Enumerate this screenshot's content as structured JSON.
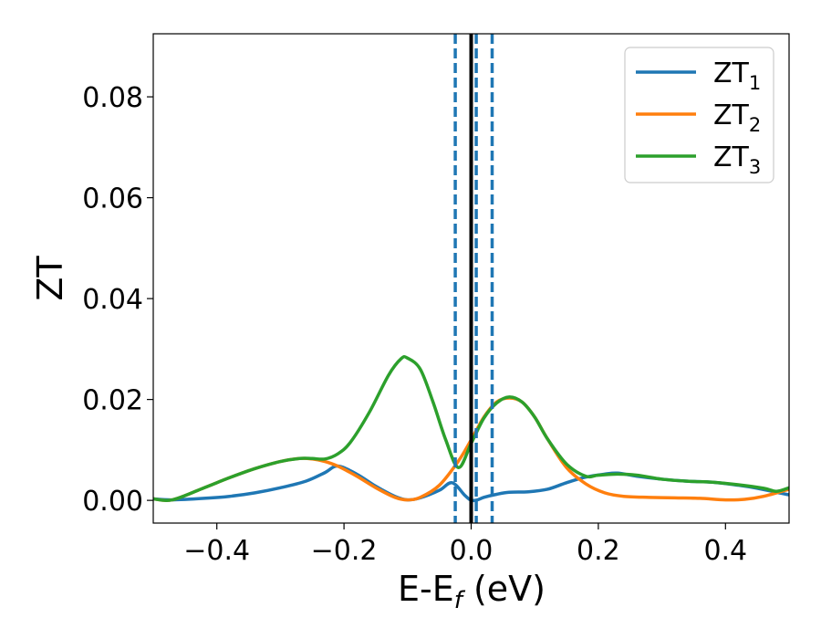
{
  "chart_data": {
    "type": "line",
    "title": "",
    "xlabel": "E-E",
    "xlabel_sub": "f",
    "xlabel_unit": " (eV)",
    "ylabel": "ZT",
    "xlim": [
      -0.5,
      0.5
    ],
    "ylim": [
      -0.0045,
      0.0925
    ],
    "xticks": [
      -0.4,
      -0.2,
      0.0,
      0.2,
      0.4
    ],
    "xtick_labels": [
      "−0.4",
      "−0.2",
      "0.0",
      "0.2",
      "0.4"
    ],
    "yticks": [
      0.0,
      0.02,
      0.04,
      0.06,
      0.08
    ],
    "ytick_labels": [
      "0.00",
      "0.02",
      "0.04",
      "0.06",
      "0.08"
    ],
    "legend_position": "top-right",
    "grid": false,
    "series": [
      {
        "name": "ZT",
        "name_sub": "1",
        "color": "#1f77b4",
        "x": [
          -0.5,
          -0.47,
          -0.42,
          -0.38,
          -0.34,
          -0.3,
          -0.26,
          -0.23,
          -0.21,
          -0.18,
          -0.15,
          -0.12,
          -0.1,
          -0.08,
          -0.05,
          -0.03,
          -0.01,
          0.0,
          0.01,
          0.02,
          0.04,
          0.06,
          0.09,
          0.12,
          0.15,
          0.18,
          0.21,
          0.23,
          0.26,
          0.3,
          0.34,
          0.38,
          0.42,
          0.45,
          0.48,
          0.5
        ],
        "y": [
          0.0003,
          0.0001,
          0.0004,
          0.0008,
          0.0015,
          0.0025,
          0.0038,
          0.0055,
          0.0068,
          0.0052,
          0.0028,
          0.0008,
          0.0001,
          0.0005,
          0.002,
          0.0035,
          0.001,
          0.0,
          0.0001,
          0.0006,
          0.0012,
          0.0016,
          0.0017,
          0.0022,
          0.0035,
          0.0046,
          0.0052,
          0.0054,
          0.0048,
          0.0042,
          0.0038,
          0.0036,
          0.003,
          0.0024,
          0.0016,
          0.0011
        ]
      },
      {
        "name": "ZT",
        "name_sub": "2",
        "color": "#ff7f0e",
        "x": [
          -0.5,
          -0.47,
          -0.42,
          -0.38,
          -0.34,
          -0.3,
          -0.27,
          -0.25,
          -0.23,
          -0.21,
          -0.18,
          -0.15,
          -0.12,
          -0.1,
          -0.08,
          -0.05,
          -0.02,
          0.0,
          0.02,
          0.04,
          0.06,
          0.08,
          0.1,
          0.12,
          0.15,
          0.18,
          0.21,
          0.24,
          0.28,
          0.32,
          0.36,
          0.4,
          0.43,
          0.46,
          0.5
        ],
        "y": [
          0.0003,
          0.0001,
          0.0025,
          0.0045,
          0.0063,
          0.0077,
          0.0083,
          0.0082,
          0.0077,
          0.0068,
          0.0048,
          0.0025,
          0.0006,
          0.0001,
          0.0006,
          0.003,
          0.0078,
          0.012,
          0.0165,
          0.0195,
          0.0203,
          0.0195,
          0.0165,
          0.0122,
          0.0065,
          0.0033,
          0.0015,
          0.0008,
          0.0006,
          0.0005,
          0.0004,
          0.0001,
          0.0002,
          0.0008,
          0.0022
        ]
      },
      {
        "name": "ZT",
        "name_sub": "3",
        "color": "#2ca02c",
        "x": [
          -0.5,
          -0.47,
          -0.42,
          -0.38,
          -0.34,
          -0.3,
          -0.27,
          -0.25,
          -0.23,
          -0.21,
          -0.19,
          -0.16,
          -0.13,
          -0.11,
          -0.1,
          -0.08,
          -0.06,
          -0.04,
          -0.02,
          0.0,
          0.02,
          0.04,
          0.06,
          0.08,
          0.1,
          0.12,
          0.15,
          0.18,
          0.2,
          0.23,
          0.26,
          0.3,
          0.34,
          0.38,
          0.42,
          0.46,
          0.48,
          0.5
        ],
        "y": [
          0.0003,
          0.0001,
          0.0025,
          0.0045,
          0.0063,
          0.0077,
          0.0083,
          0.0083,
          0.0082,
          0.0092,
          0.0115,
          0.0175,
          0.0248,
          0.0281,
          0.0282,
          0.026,
          0.0195,
          0.012,
          0.0065,
          0.0113,
          0.0163,
          0.0193,
          0.0205,
          0.0195,
          0.0165,
          0.0122,
          0.0072,
          0.0048,
          0.005,
          0.0052,
          0.005,
          0.0042,
          0.0038,
          0.0036,
          0.0031,
          0.0024,
          0.0018,
          0.0025
        ]
      }
    ],
    "vertical_lines": [
      {
        "x": 0.0,
        "color": "#000000",
        "style": "solid"
      },
      {
        "x": -0.025,
        "color": "#1f77b4",
        "style": "dashed"
      },
      {
        "x": 0.008,
        "color": "#1f77b4",
        "style": "dashed"
      },
      {
        "x": 0.033,
        "color": "#1f77b4",
        "style": "dashed"
      }
    ]
  }
}
